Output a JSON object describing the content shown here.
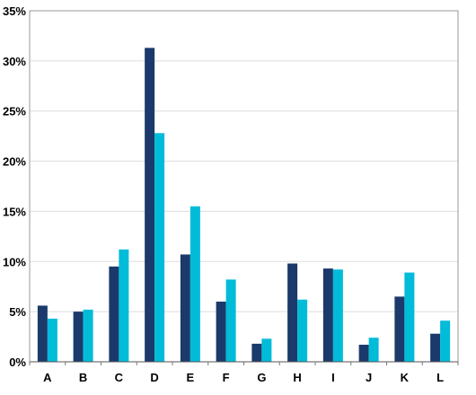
{
  "chart_data": {
    "type": "bar",
    "title": "",
    "xlabel": "",
    "ylabel": "",
    "categories": [
      "A",
      "B",
      "C",
      "D",
      "E",
      "F",
      "G",
      "H",
      "I",
      "J",
      "K",
      "L"
    ],
    "series": [
      {
        "values": [
          5.6,
          5.0,
          9.5,
          31.3,
          10.7,
          6.0,
          1.8,
          9.8,
          9.3,
          1.7,
          6.5,
          2.8
        ]
      },
      {
        "values": [
          4.3,
          5.2,
          11.2,
          22.8,
          15.5,
          8.2,
          2.3,
          6.2,
          9.2,
          2.4,
          8.9,
          4.1
        ]
      }
    ],
    "ylim": [
      0,
      35
    ],
    "yticks": [
      0,
      5,
      10,
      15,
      20,
      25,
      30,
      35
    ],
    "ytick_labels": [
      "0%",
      "5%",
      "10%",
      "15%",
      "20%",
      "25%",
      "30%",
      "35%"
    ],
    "grid": true,
    "legend": "none",
    "colors": [
      "#1b3a6b",
      "#00bcd9"
    ]
  }
}
